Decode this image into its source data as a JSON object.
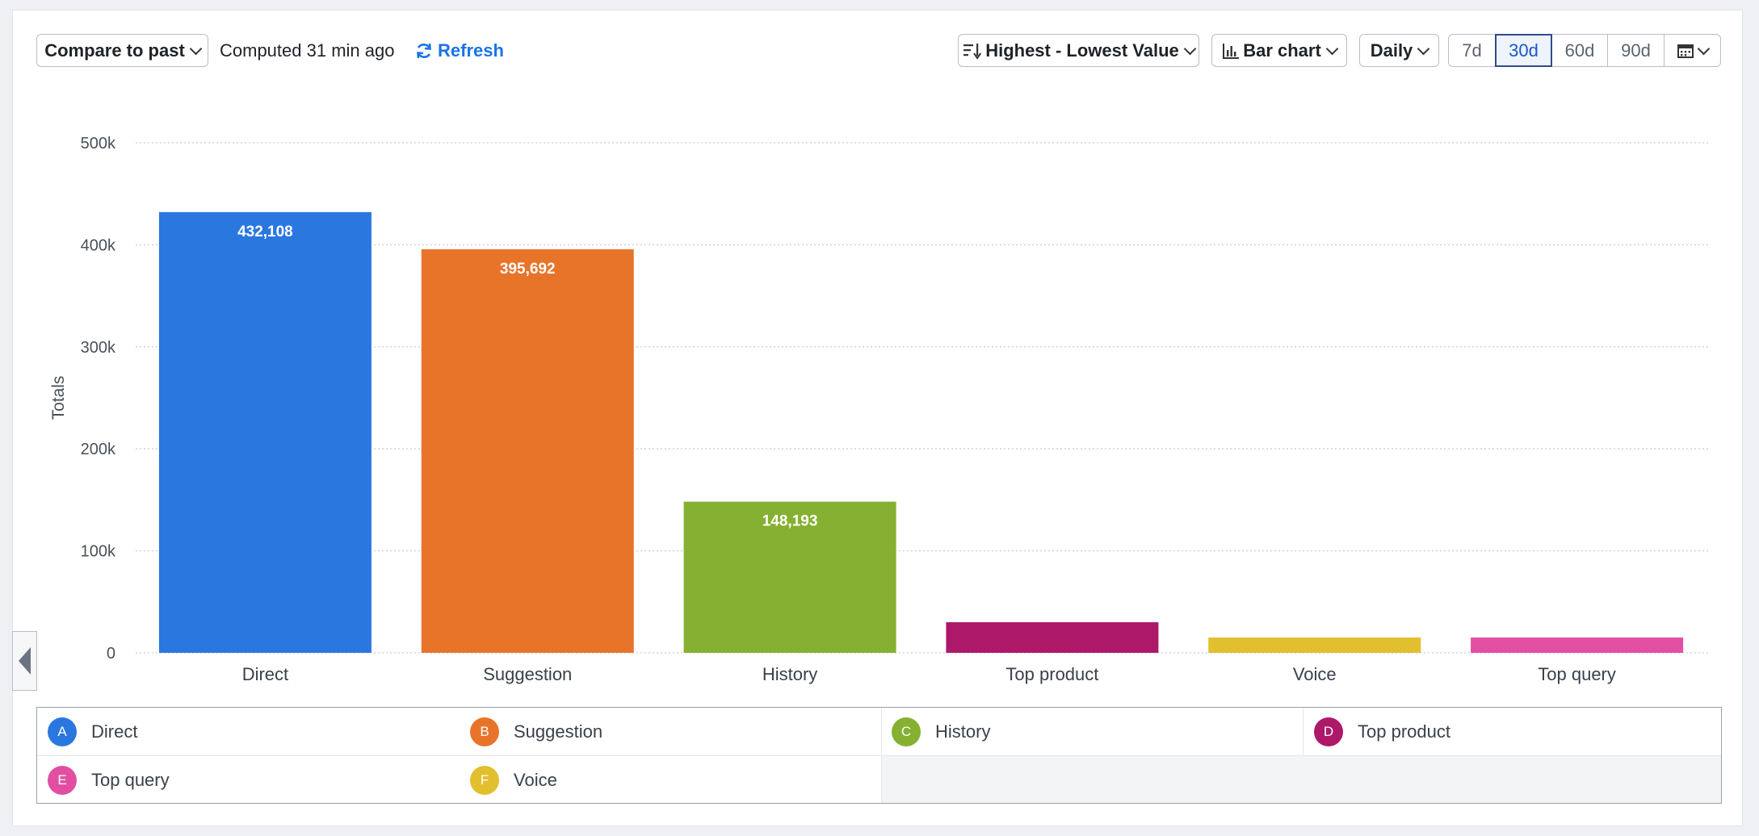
{
  "toolbar": {
    "compare_label": "Compare to past",
    "computed_text": "Computed 31 min ago",
    "refresh_label": "Refresh",
    "sort_label": "Highest - Lowest Value",
    "chart_type_label": "Bar chart",
    "interval_label": "Daily",
    "ranges": [
      "7d",
      "30d",
      "60d",
      "90d"
    ],
    "active_range": "30d"
  },
  "chart_data": {
    "type": "bar",
    "categories": [
      "Direct",
      "Suggestion",
      "History",
      "Top product",
      "Voice",
      "Top query"
    ],
    "values": [
      432108,
      395692,
      148193,
      30000,
      15000,
      15000
    ],
    "data_labels": [
      "432,108",
      "395,692",
      "148,193",
      "",
      "",
      ""
    ],
    "colors": [
      "#2a77e0",
      "#e8742a",
      "#86b031",
      "#ad1868",
      "#e2bf2e",
      "#e24ea2"
    ],
    "ylabel": "Totals",
    "ylim": [
      0,
      500000
    ],
    "yticks": [
      0,
      100000,
      200000,
      300000,
      400000,
      500000
    ],
    "ytick_labels": [
      "0",
      "100k",
      "200k",
      "300k",
      "400k",
      "500k"
    ],
    "grid": true
  },
  "legend": {
    "items": [
      {
        "badge": "A",
        "label": "Direct",
        "color": "#2a77e0"
      },
      {
        "badge": "B",
        "label": "Suggestion",
        "color": "#e8742a"
      },
      {
        "badge": "C",
        "label": "History",
        "color": "#86b031"
      },
      {
        "badge": "D",
        "label": "Top product",
        "color": "#ad1868"
      },
      {
        "badge": "E",
        "label": "Top query",
        "color": "#e24ea2"
      },
      {
        "badge": "F",
        "label": "Voice",
        "color": "#e2bf2e"
      }
    ]
  }
}
